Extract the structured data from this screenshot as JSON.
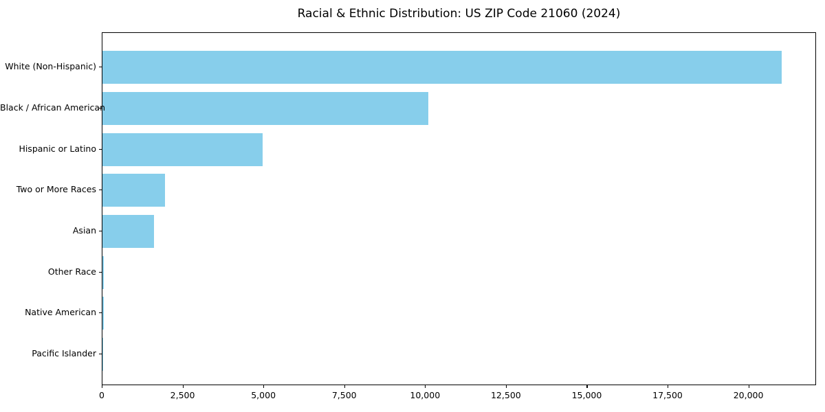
{
  "chart_data": {
    "type": "bar",
    "orientation": "horizontal",
    "title": "Racial & Ethnic Distribution: US ZIP Code 21060 (2024)",
    "categories": [
      "White (Non-Hispanic)",
      "Black / African American",
      "Hispanic or Latino",
      "Two or More Races",
      "Asian",
      "Other Race",
      "Native American",
      "Pacific Islander"
    ],
    "values": [
      21000,
      10080,
      4950,
      1930,
      1590,
      50,
      40,
      10
    ],
    "xlabel": "",
    "ylabel": "",
    "xlim": [
      0,
      22050
    ],
    "xticks": [
      0,
      2500,
      5000,
      7500,
      10000,
      12500,
      15000,
      17500,
      20000
    ],
    "xtick_labels": [
      "0",
      "2,500",
      "5,000",
      "7,500",
      "10,000",
      "12,500",
      "15,000",
      "17,500",
      "20,000"
    ],
    "bar_color": "#87CEEB",
    "background_color": "#ffffff",
    "spine_color": "#000000",
    "grid": false,
    "legend_position": "none"
  }
}
